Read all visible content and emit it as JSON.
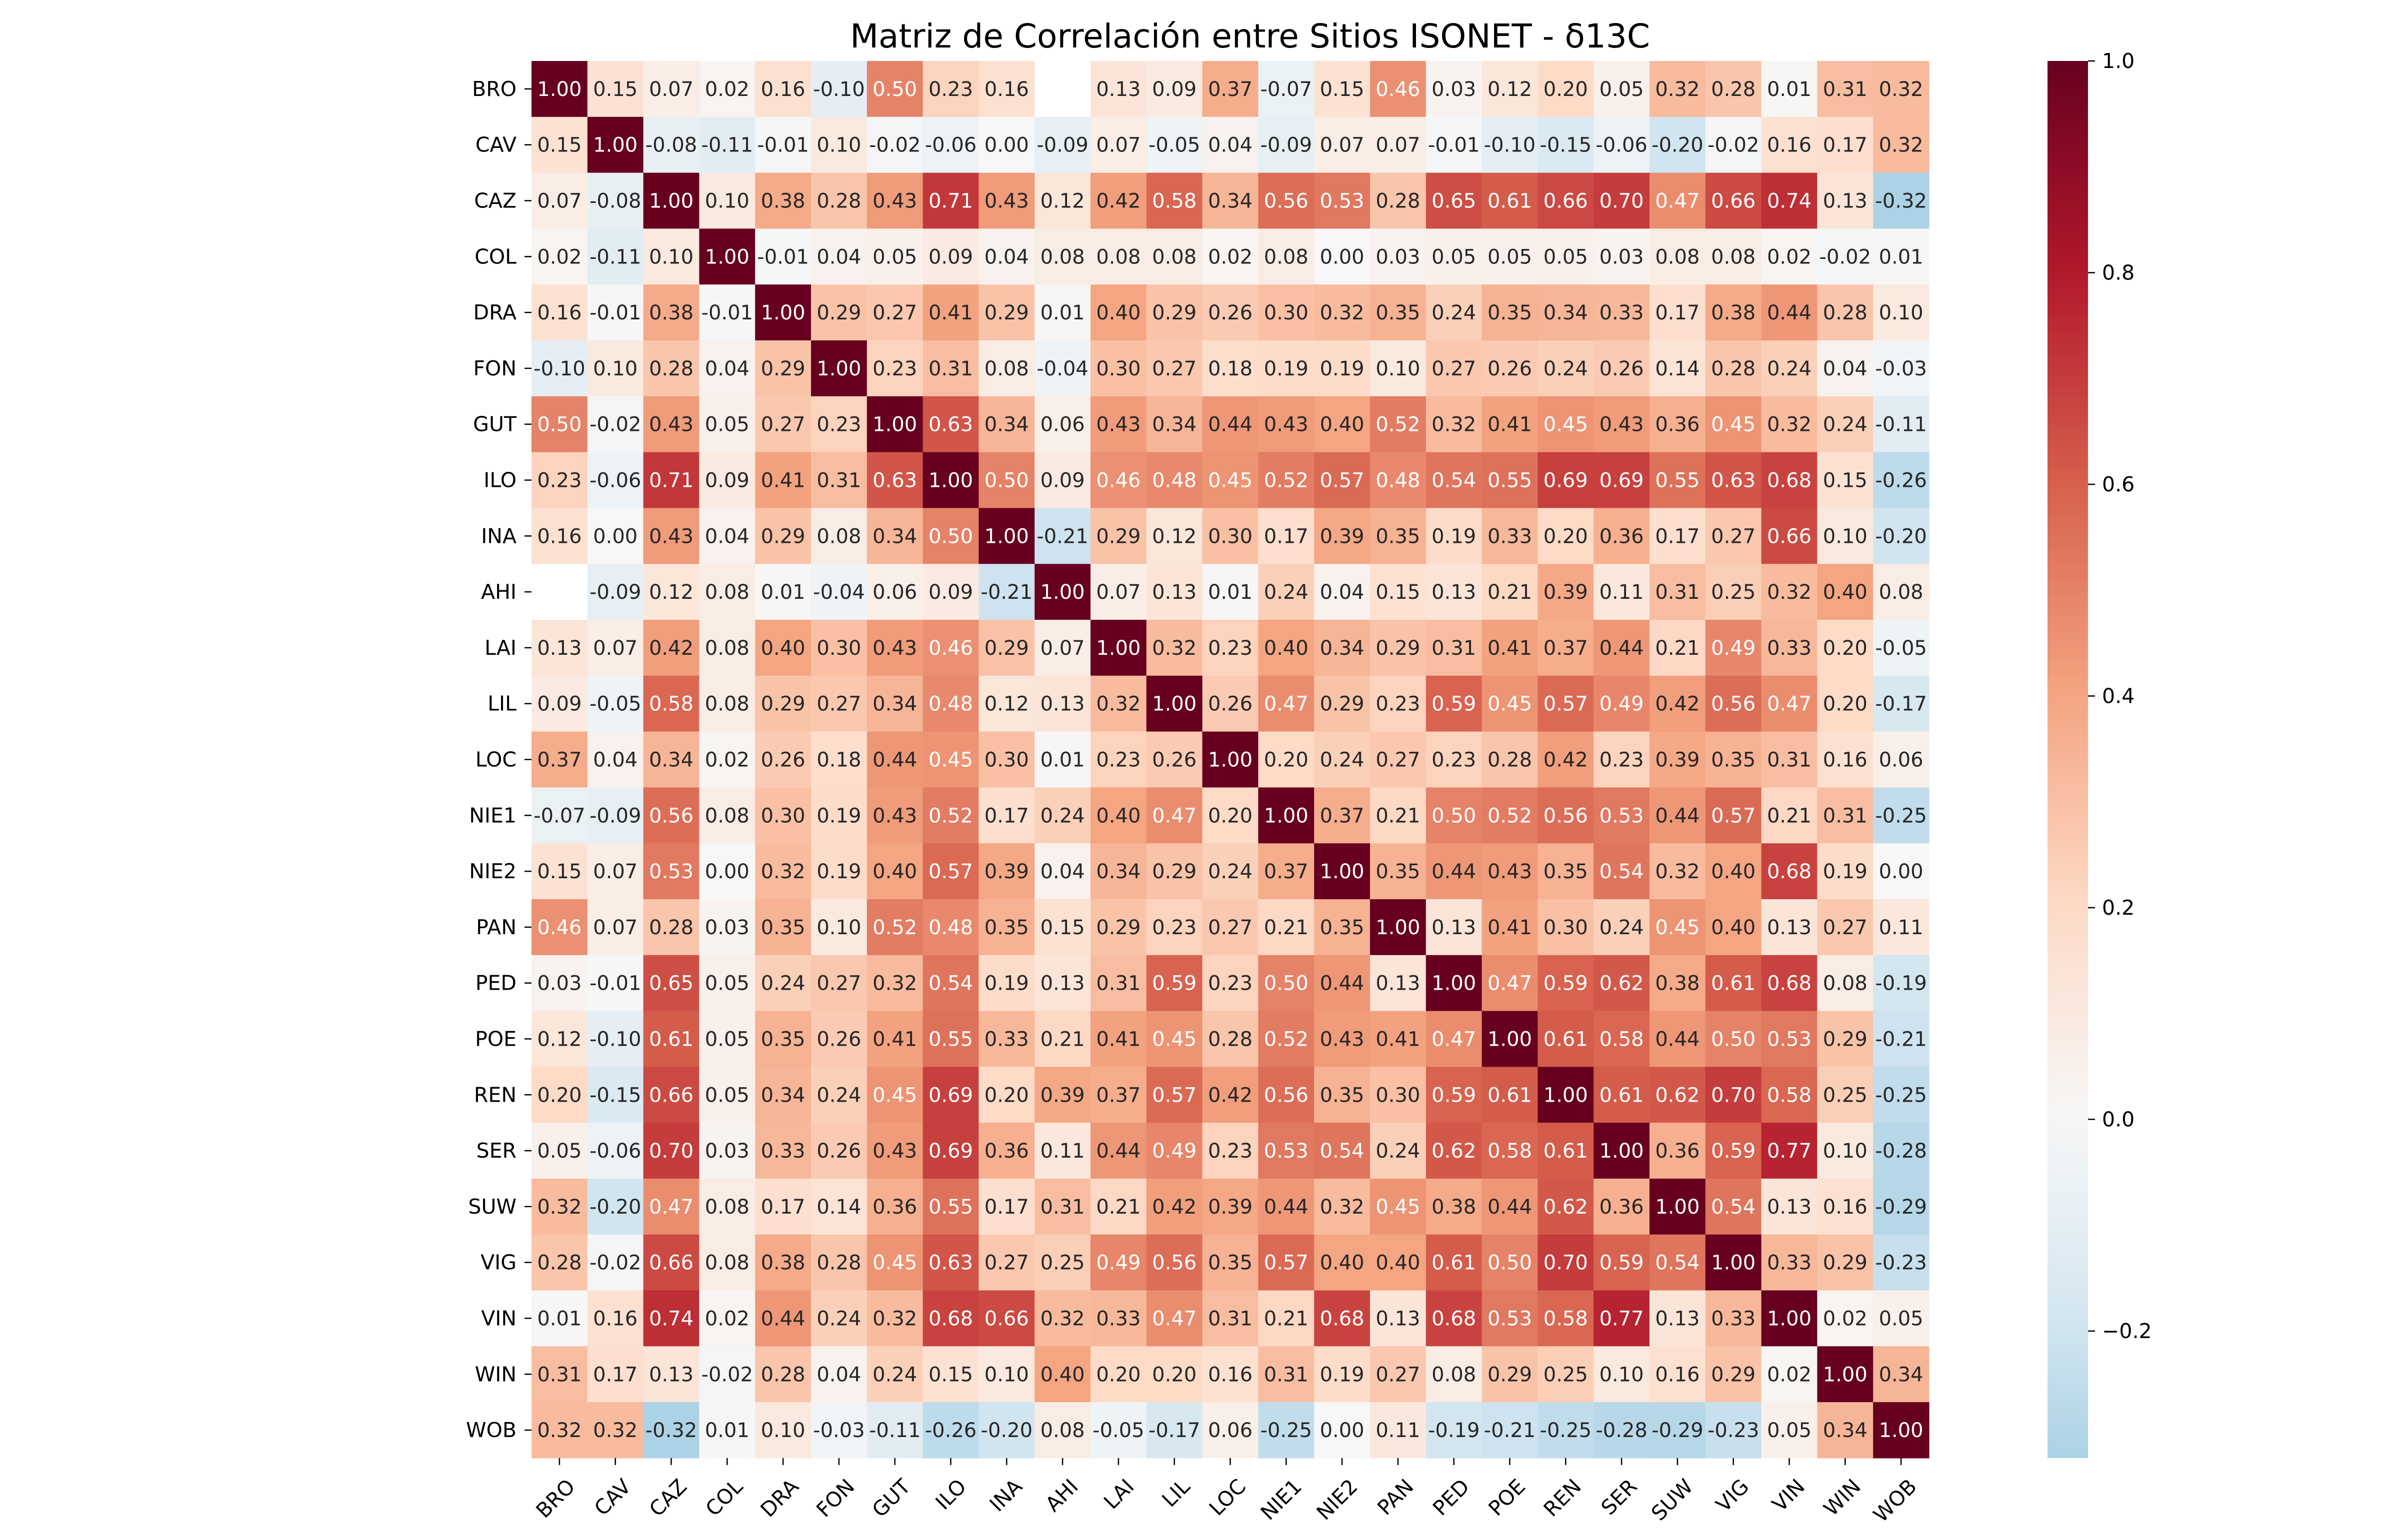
{
  "chart_data": {
    "type": "heatmap",
    "title": "Matriz de Correlación entre Sitios ISONET - δ13C",
    "xlabel": "",
    "ylabel": "",
    "labels": [
      "BRO",
      "CAV",
      "CAZ",
      "COL",
      "DRA",
      "FON",
      "GUT",
      "ILO",
      "INA",
      "AHI",
      "LAI",
      "LIL",
      "LOC",
      "NIE1",
      "NIE2",
      "PAN",
      "PED",
      "POE",
      "REN",
      "SER",
      "SUW",
      "VIG",
      "VIN",
      "WIN",
      "WOB"
    ],
    "matrix": [
      [
        1.0,
        0.15,
        0.07,
        0.02,
        0.16,
        -0.1,
        0.5,
        0.23,
        0.16,
        null,
        0.13,
        0.09,
        0.37,
        -0.07,
        0.15,
        0.46,
        0.03,
        0.12,
        0.2,
        0.05,
        0.32,
        0.28,
        0.01,
        0.31,
        0.32
      ],
      [
        0.15,
        1.0,
        -0.08,
        -0.11,
        -0.01,
        0.1,
        -0.02,
        -0.06,
        0.0,
        -0.09,
        0.07,
        -0.05,
        0.04,
        -0.09,
        0.07,
        0.07,
        -0.01,
        -0.1,
        -0.15,
        -0.06,
        -0.2,
        -0.02,
        0.16,
        0.17,
        0.32
      ],
      [
        0.07,
        -0.08,
        1.0,
        0.1,
        0.38,
        0.28,
        0.43,
        0.71,
        0.43,
        0.12,
        0.42,
        0.58,
        0.34,
        0.56,
        0.53,
        0.28,
        0.65,
        0.61,
        0.66,
        0.7,
        0.47,
        0.66,
        0.74,
        0.13,
        -0.32
      ],
      [
        0.02,
        -0.11,
        0.1,
        1.0,
        -0.01,
        0.04,
        0.05,
        0.09,
        0.04,
        0.08,
        0.08,
        0.08,
        0.02,
        0.08,
        0.0,
        0.03,
        0.05,
        0.05,
        0.05,
        0.03,
        0.08,
        0.08,
        0.02,
        -0.02,
        0.01
      ],
      [
        0.16,
        -0.01,
        0.38,
        -0.01,
        1.0,
        0.29,
        0.27,
        0.41,
        0.29,
        0.01,
        0.4,
        0.29,
        0.26,
        0.3,
        0.32,
        0.35,
        0.24,
        0.35,
        0.34,
        0.33,
        0.17,
        0.38,
        0.44,
        0.28,
        0.1
      ],
      [
        -0.1,
        0.1,
        0.28,
        0.04,
        0.29,
        1.0,
        0.23,
        0.31,
        0.08,
        -0.04,
        0.3,
        0.27,
        0.18,
        0.19,
        0.19,
        0.1,
        0.27,
        0.26,
        0.24,
        0.26,
        0.14,
        0.28,
        0.24,
        0.04,
        -0.03
      ],
      [
        0.5,
        -0.02,
        0.43,
        0.05,
        0.27,
        0.23,
        1.0,
        0.63,
        0.34,
        0.06,
        0.43,
        0.34,
        0.44,
        0.43,
        0.4,
        0.52,
        0.32,
        0.41,
        0.45,
        0.43,
        0.36,
        0.45,
        0.32,
        0.24,
        -0.11
      ],
      [
        0.23,
        -0.06,
        0.71,
        0.09,
        0.41,
        0.31,
        0.63,
        1.0,
        0.5,
        0.09,
        0.46,
        0.48,
        0.45,
        0.52,
        0.57,
        0.48,
        0.54,
        0.55,
        0.69,
        0.69,
        0.55,
        0.63,
        0.68,
        0.15,
        -0.26
      ],
      [
        0.16,
        0.0,
        0.43,
        0.04,
        0.29,
        0.08,
        0.34,
        0.5,
        1.0,
        -0.21,
        0.29,
        0.12,
        0.3,
        0.17,
        0.39,
        0.35,
        0.19,
        0.33,
        0.2,
        0.36,
        0.17,
        0.27,
        0.66,
        0.1,
        -0.2
      ],
      [
        null,
        -0.09,
        0.12,
        0.08,
        0.01,
        -0.04,
        0.06,
        0.09,
        -0.21,
        1.0,
        0.07,
        0.13,
        0.01,
        0.24,
        0.04,
        0.15,
        0.13,
        0.21,
        0.39,
        0.11,
        0.31,
        0.25,
        0.32,
        0.4,
        0.08
      ],
      [
        0.13,
        0.07,
        0.42,
        0.08,
        0.4,
        0.3,
        0.43,
        0.46,
        0.29,
        0.07,
        1.0,
        0.32,
        0.23,
        0.4,
        0.34,
        0.29,
        0.31,
        0.41,
        0.37,
        0.44,
        0.21,
        0.49,
        0.33,
        0.2,
        -0.05
      ],
      [
        0.09,
        -0.05,
        0.58,
        0.08,
        0.29,
        0.27,
        0.34,
        0.48,
        0.12,
        0.13,
        0.32,
        1.0,
        0.26,
        0.47,
        0.29,
        0.23,
        0.59,
        0.45,
        0.57,
        0.49,
        0.42,
        0.56,
        0.47,
        0.2,
        -0.17
      ],
      [
        0.37,
        0.04,
        0.34,
        0.02,
        0.26,
        0.18,
        0.44,
        0.45,
        0.3,
        0.01,
        0.23,
        0.26,
        1.0,
        0.2,
        0.24,
        0.27,
        0.23,
        0.28,
        0.42,
        0.23,
        0.39,
        0.35,
        0.31,
        0.16,
        0.06
      ],
      [
        -0.07,
        -0.09,
        0.56,
        0.08,
        0.3,
        0.19,
        0.43,
        0.52,
        0.17,
        0.24,
        0.4,
        0.47,
        0.2,
        1.0,
        0.37,
        0.21,
        0.5,
        0.52,
        0.56,
        0.53,
        0.44,
        0.57,
        0.21,
        0.31,
        -0.25
      ],
      [
        0.15,
        0.07,
        0.53,
        0.0,
        0.32,
        0.19,
        0.4,
        0.57,
        0.39,
        0.04,
        0.34,
        0.29,
        0.24,
        0.37,
        1.0,
        0.35,
        0.44,
        0.43,
        0.35,
        0.54,
        0.32,
        0.4,
        0.68,
        0.19,
        0.0
      ],
      [
        0.46,
        0.07,
        0.28,
        0.03,
        0.35,
        0.1,
        0.52,
        0.48,
        0.35,
        0.15,
        0.29,
        0.23,
        0.27,
        0.21,
        0.35,
        1.0,
        0.13,
        0.41,
        0.3,
        0.24,
        0.45,
        0.4,
        0.13,
        0.27,
        0.11
      ],
      [
        0.03,
        -0.01,
        0.65,
        0.05,
        0.24,
        0.27,
        0.32,
        0.54,
        0.19,
        0.13,
        0.31,
        0.59,
        0.23,
        0.5,
        0.44,
        0.13,
        1.0,
        0.47,
        0.59,
        0.62,
        0.38,
        0.61,
        0.68,
        0.08,
        -0.19
      ],
      [
        0.12,
        -0.1,
        0.61,
        0.05,
        0.35,
        0.26,
        0.41,
        0.55,
        0.33,
        0.21,
        0.41,
        0.45,
        0.28,
        0.52,
        0.43,
        0.41,
        0.47,
        1.0,
        0.61,
        0.58,
        0.44,
        0.5,
        0.53,
        0.29,
        -0.21
      ],
      [
        0.2,
        -0.15,
        0.66,
        0.05,
        0.34,
        0.24,
        0.45,
        0.69,
        0.2,
        0.39,
        0.37,
        0.57,
        0.42,
        0.56,
        0.35,
        0.3,
        0.59,
        0.61,
        1.0,
        0.61,
        0.62,
        0.7,
        0.58,
        0.25,
        -0.25
      ],
      [
        0.05,
        -0.06,
        0.7,
        0.03,
        0.33,
        0.26,
        0.43,
        0.69,
        0.36,
        0.11,
        0.44,
        0.49,
        0.23,
        0.53,
        0.54,
        0.24,
        0.62,
        0.58,
        0.61,
        1.0,
        0.36,
        0.59,
        0.77,
        0.1,
        -0.28
      ],
      [
        0.32,
        -0.2,
        0.47,
        0.08,
        0.17,
        0.14,
        0.36,
        0.55,
        0.17,
        0.31,
        0.21,
        0.42,
        0.39,
        0.44,
        0.32,
        0.45,
        0.38,
        0.44,
        0.62,
        0.36,
        1.0,
        0.54,
        0.13,
        0.16,
        -0.29
      ],
      [
        0.28,
        -0.02,
        0.66,
        0.08,
        0.38,
        0.28,
        0.45,
        0.63,
        0.27,
        0.25,
        0.49,
        0.56,
        0.35,
        0.57,
        0.4,
        0.4,
        0.61,
        0.5,
        0.7,
        0.59,
        0.54,
        1.0,
        0.33,
        0.29,
        -0.23
      ],
      [
        0.01,
        0.16,
        0.74,
        0.02,
        0.44,
        0.24,
        0.32,
        0.68,
        0.66,
        0.32,
        0.33,
        0.47,
        0.31,
        0.21,
        0.68,
        0.13,
        0.68,
        0.53,
        0.58,
        0.77,
        0.13,
        0.33,
        1.0,
        0.02,
        0.05
      ],
      [
        0.31,
        0.17,
        0.13,
        -0.02,
        0.28,
        0.04,
        0.24,
        0.15,
        0.1,
        0.4,
        0.2,
        0.2,
        0.16,
        0.31,
        0.19,
        0.27,
        0.08,
        0.29,
        0.25,
        0.1,
        0.16,
        0.29,
        0.02,
        1.0,
        0.34
      ],
      [
        0.32,
        0.32,
        -0.32,
        0.01,
        0.1,
        -0.03,
        -0.11,
        -0.26,
        -0.2,
        0.08,
        -0.05,
        -0.17,
        0.06,
        -0.25,
        0.0,
        0.11,
        -0.19,
        -0.21,
        -0.25,
        -0.28,
        -0.29,
        -0.23,
        0.05,
        0.34,
        1.0
      ]
    ],
    "value_format": "2 decimals",
    "colormap": "RdBu_r",
    "vmin": -0.32,
    "vmax": 1.0,
    "center": 0.0,
    "colorbar_ticks": [
      1.0,
      0.8,
      0.6,
      0.4,
      0.2,
      0.0,
      -0.2
    ],
    "colorbar_tick_labels": [
      "1.0",
      "0.8",
      "0.6",
      "0.4",
      "0.2",
      "0.0",
      "−0.2"
    ],
    "missing_cells_color": "#ffffff",
    "colors": {
      "strong_positive": "#67001f",
      "neutral": "#f7f7f7",
      "negative": "#4393c3",
      "annotation_dark": "#262626",
      "annotation_light": "#ffffff"
    }
  }
}
